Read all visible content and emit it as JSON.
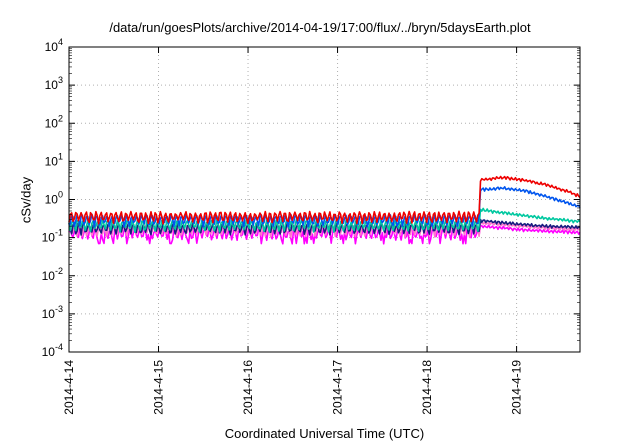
{
  "chart_data": {
    "type": "line",
    "title": "/data/run/goesPlots/archive/2014-04-19/17:00/flux/../bryn/5daysEarth.plot",
    "xlabel": "Coordinated Universal Time (UTC)",
    "ylabel": "cSv/day",
    "yscale": "log",
    "ylim": [
      0.0001,
      10000
    ],
    "y_ticks": [
      {
        "base": "10",
        "exp": "-4"
      },
      {
        "base": "10",
        "exp": "-3"
      },
      {
        "base": "10",
        "exp": "-2"
      },
      {
        "base": "10",
        "exp": "-1"
      },
      {
        "base": "10",
        "exp": "0"
      },
      {
        "base": "10",
        "exp": "1"
      },
      {
        "base": "10",
        "exp": "2"
      },
      {
        "base": "10",
        "exp": "3"
      },
      {
        "base": "10",
        "exp": "4"
      }
    ],
    "x_ticks": [
      "2014-4-14",
      "2014-4-15",
      "2014-4-16",
      "2014-4-17",
      "2014-4-18",
      "2014-4-19"
    ],
    "xlim": [
      "2014-04-14 00:00",
      "2014-04-19 17:00"
    ],
    "grid": true,
    "legend": "none",
    "event_time": "2014-04-18 14:00",
    "series": [
      {
        "color": "#ee0000",
        "baseline": 0.36,
        "peak": [
          [
            0,
            3.2
          ],
          [
            6,
            3.8
          ],
          [
            12,
            3.2
          ],
          [
            18,
            2.4
          ],
          [
            24,
            1.6
          ],
          [
            29,
            1.0
          ],
          [
            30,
            0.85
          ]
        ]
      },
      {
        "color": "#0055ee",
        "baseline": 0.3,
        "peak": [
          [
            0,
            1.8
          ],
          [
            6,
            2.0
          ],
          [
            12,
            1.7
          ],
          [
            18,
            1.2
          ],
          [
            24,
            0.8
          ],
          [
            29,
            0.55
          ],
          [
            30,
            0.5
          ]
        ]
      },
      {
        "color": "#00c8a0",
        "baseline": 0.22,
        "peak": [
          [
            0,
            0.55
          ],
          [
            6,
            0.45
          ],
          [
            12,
            0.38
          ],
          [
            18,
            0.32
          ],
          [
            24,
            0.28
          ],
          [
            29,
            0.26
          ],
          [
            30,
            0.26
          ]
        ]
      },
      {
        "color": "#1a1a80",
        "baseline": 0.18,
        "peak": [
          [
            0,
            0.28
          ],
          [
            6,
            0.25
          ],
          [
            12,
            0.22
          ],
          [
            18,
            0.2
          ],
          [
            24,
            0.19
          ],
          [
            29,
            0.18
          ],
          [
            30,
            0.18
          ]
        ]
      },
      {
        "color": "#ff77cc",
        "baseline": 0.16,
        "peak": [
          [
            0,
            0.24
          ],
          [
            6,
            0.22
          ],
          [
            12,
            0.2
          ],
          [
            18,
            0.18
          ],
          [
            24,
            0.17
          ],
          [
            29,
            0.16
          ],
          [
            30,
            0.16
          ]
        ]
      },
      {
        "color": "#ff00ff",
        "baseline": 0.13,
        "peak": [
          [
            0,
            0.2
          ],
          [
            6,
            0.18
          ],
          [
            12,
            0.16
          ],
          [
            18,
            0.15
          ],
          [
            24,
            0.14
          ],
          [
            29,
            0.13
          ],
          [
            30,
            0.13
          ]
        ]
      }
    ]
  }
}
